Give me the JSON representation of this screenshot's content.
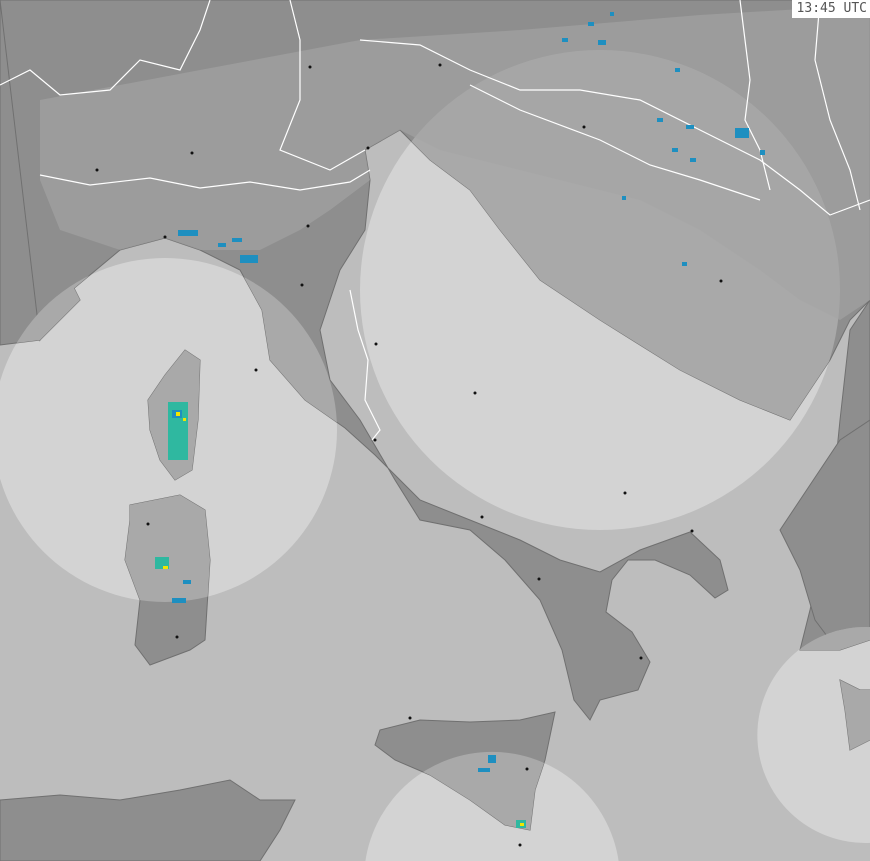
{
  "timestamp": "13:45 UTC",
  "colors": {
    "sea": "#bdbdbd",
    "sea_in_coverage": "#d3d3d3",
    "land": "#8e8e8e",
    "land_in_coverage": "#a9a9a9",
    "border": "#ffffff",
    "coast": "#6e6e6e",
    "radar_low": "#1e8fc0",
    "radar_mid": "#2fb8a0",
    "radar_high": "#f2e600"
  },
  "map": {
    "layers": [
      "coverage-circles",
      "land",
      "borders",
      "cities",
      "precipitation"
    ]
  }
}
